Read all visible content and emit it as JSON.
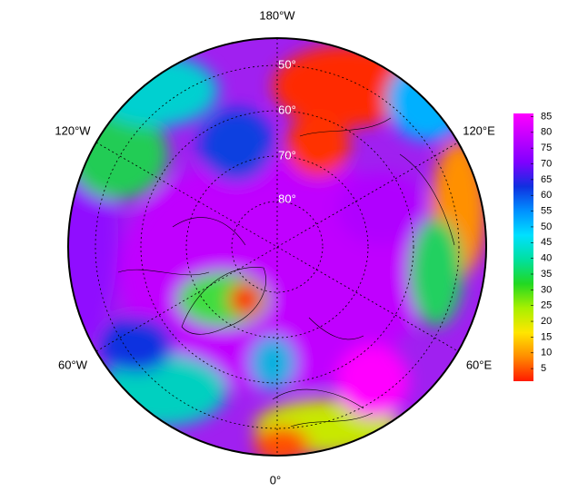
{
  "map": {
    "lon_labels": [
      "180°W",
      "120°W",
      "120°E",
      "60°W",
      "60°E",
      "0°"
    ],
    "lat_labels": [
      "50°",
      "60°",
      "70°",
      "80°"
    ],
    "colorbar": {
      "lim": [
        1,
        86
      ],
      "ticks": [
        5,
        10,
        15,
        20,
        25,
        30,
        35,
        40,
        45,
        50,
        55,
        60,
        65,
        70,
        75,
        80,
        85
      ],
      "colors": [
        "#ff1a00",
        "#ff8c00",
        "#ffe600",
        "#a8f000",
        "#22d822",
        "#00e0a0",
        "#00e0ff",
        "#0090ff",
        "#1030e0",
        "#8000ff",
        "#c000ff",
        "#ff00ff"
      ]
    }
  }
}
